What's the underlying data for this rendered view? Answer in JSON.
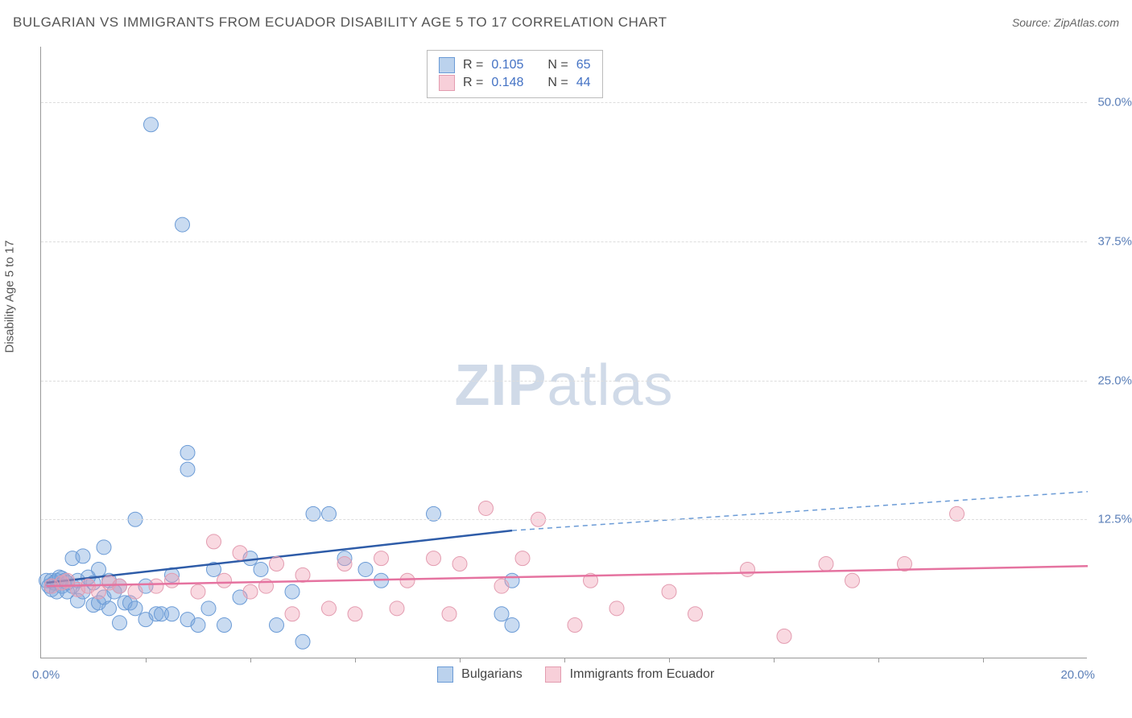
{
  "title": "BULGARIAN VS IMMIGRANTS FROM ECUADOR DISABILITY AGE 5 TO 17 CORRELATION CHART",
  "source": "Source: ZipAtlas.com",
  "watermark_bold": "ZIP",
  "watermark_light": "atlas",
  "y_axis_title": "Disability Age 5 to 17",
  "chart": {
    "type": "scatter",
    "xlim": [
      0,
      20
    ],
    "ylim": [
      0,
      55
    ],
    "xticks_pct": [
      2,
      4,
      6,
      8,
      10,
      12,
      14,
      16,
      18
    ],
    "yticks": [
      {
        "v": 12.5,
        "label": "12.5%"
      },
      {
        "v": 25.0,
        "label": "25.0%"
      },
      {
        "v": 37.5,
        "label": "37.5%"
      },
      {
        "v": 50.0,
        "label": "50.0%"
      }
    ],
    "xlabel_min": "0.0%",
    "xlabel_max": "20.0%",
    "background_color": "#ffffff",
    "grid_color": "#dddddd",
    "marker_radius": 9,
    "series": [
      {
        "name": "Bulgarians",
        "color_fill": "rgba(120,165,220,0.4)",
        "color_stroke": "#6b9bd6",
        "R": "0.105",
        "N": "65",
        "points": [
          [
            0.1,
            7.0
          ],
          [
            0.15,
            6.5
          ],
          [
            0.2,
            7.0
          ],
          [
            0.2,
            6.2
          ],
          [
            0.25,
            6.8
          ],
          [
            0.3,
            7.0
          ],
          [
            0.3,
            6.0
          ],
          [
            0.35,
            7.3
          ],
          [
            0.4,
            6.5
          ],
          [
            0.4,
            7.2
          ],
          [
            0.45,
            7.0
          ],
          [
            0.5,
            6.8
          ],
          [
            0.5,
            6.0
          ],
          [
            0.6,
            9.0
          ],
          [
            0.6,
            6.5
          ],
          [
            0.7,
            7.0
          ],
          [
            0.7,
            5.2
          ],
          [
            0.8,
            9.2
          ],
          [
            0.8,
            6.0
          ],
          [
            0.9,
            7.3
          ],
          [
            1.0,
            6.8
          ],
          [
            1.0,
            4.8
          ],
          [
            1.1,
            8.0
          ],
          [
            1.1,
            5.0
          ],
          [
            1.2,
            10.0
          ],
          [
            1.2,
            5.5
          ],
          [
            1.3,
            7.0
          ],
          [
            1.3,
            4.5
          ],
          [
            1.4,
            6.0
          ],
          [
            1.5,
            6.5
          ],
          [
            1.5,
            3.2
          ],
          [
            1.6,
            5.0
          ],
          [
            1.7,
            5.0
          ],
          [
            1.8,
            12.5
          ],
          [
            1.8,
            4.5
          ],
          [
            2.0,
            6.5
          ],
          [
            2.0,
            3.5
          ],
          [
            2.1,
            48.0
          ],
          [
            2.2,
            4.0
          ],
          [
            2.3,
            4.0
          ],
          [
            2.5,
            7.5
          ],
          [
            2.5,
            4.0
          ],
          [
            2.7,
            39.0
          ],
          [
            2.8,
            18.5
          ],
          [
            2.8,
            17.0
          ],
          [
            2.8,
            3.5
          ],
          [
            3.0,
            3.0
          ],
          [
            3.2,
            4.5
          ],
          [
            3.3,
            8.0
          ],
          [
            3.5,
            3.0
          ],
          [
            3.8,
            5.5
          ],
          [
            4.0,
            9.0
          ],
          [
            4.2,
            8.0
          ],
          [
            4.5,
            3.0
          ],
          [
            4.8,
            6.0
          ],
          [
            5.0,
            1.5
          ],
          [
            5.2,
            13.0
          ],
          [
            5.5,
            13.0
          ],
          [
            5.8,
            9.0
          ],
          [
            6.2,
            8.0
          ],
          [
            6.5,
            7.0
          ],
          [
            7.5,
            13.0
          ],
          [
            8.8,
            4.0
          ],
          [
            9.0,
            7.0
          ],
          [
            9.0,
            3.0
          ]
        ],
        "trend_solid": {
          "x1": 0.1,
          "y1": 6.8,
          "x2": 9.0,
          "y2": 11.5
        },
        "trend_dash": {
          "x1": 9.0,
          "y1": 11.5,
          "x2": 20.0,
          "y2": 15.0
        }
      },
      {
        "name": "Immigrants from Ecuador",
        "color_fill": "rgba(240,160,180,0.4)",
        "color_stroke": "#e39cb0",
        "R": "0.148",
        "N": "44",
        "points": [
          [
            0.2,
            6.5
          ],
          [
            0.4,
            6.8
          ],
          [
            0.5,
            7.0
          ],
          [
            0.7,
            6.2
          ],
          [
            0.9,
            6.5
          ],
          [
            1.1,
            6.0
          ],
          [
            1.3,
            6.8
          ],
          [
            1.5,
            6.5
          ],
          [
            1.8,
            6.0
          ],
          [
            2.2,
            6.5
          ],
          [
            2.5,
            7.0
          ],
          [
            3.0,
            6.0
          ],
          [
            3.3,
            10.5
          ],
          [
            3.5,
            7.0
          ],
          [
            3.8,
            9.5
          ],
          [
            4.0,
            6.0
          ],
          [
            4.3,
            6.5
          ],
          [
            4.5,
            8.5
          ],
          [
            4.8,
            4.0
          ],
          [
            5.0,
            7.5
          ],
          [
            5.5,
            4.5
          ],
          [
            5.8,
            8.5
          ],
          [
            6.0,
            4.0
          ],
          [
            6.5,
            9.0
          ],
          [
            6.8,
            4.5
          ],
          [
            7.0,
            7.0
          ],
          [
            7.5,
            9.0
          ],
          [
            7.8,
            4.0
          ],
          [
            8.0,
            8.5
          ],
          [
            8.5,
            13.5
          ],
          [
            8.8,
            6.5
          ],
          [
            9.2,
            9.0
          ],
          [
            9.5,
            12.5
          ],
          [
            10.2,
            3.0
          ],
          [
            10.5,
            7.0
          ],
          [
            11.0,
            4.5
          ],
          [
            12.0,
            6.0
          ],
          [
            12.5,
            4.0
          ],
          [
            13.5,
            8.0
          ],
          [
            14.2,
            2.0
          ],
          [
            15.0,
            8.5
          ],
          [
            15.5,
            7.0
          ],
          [
            16.5,
            8.5
          ],
          [
            17.5,
            13.0
          ]
        ],
        "trend_solid": {
          "x1": 0.1,
          "y1": 6.5,
          "x2": 20.0,
          "y2": 8.3
        }
      }
    ]
  },
  "stats_box": {
    "rows": [
      {
        "class": "blue",
        "R_label": "R =",
        "R": "0.105",
        "N_label": "N =",
        "N": "65"
      },
      {
        "class": "pink",
        "R_label": "R =",
        "R": "0.148",
        "N_label": "N =",
        "N": "44"
      }
    ]
  },
  "legend": {
    "items": [
      {
        "class": "blue",
        "label": "Bulgarians"
      },
      {
        "class": "pink",
        "label": "Immigrants from Ecuador"
      }
    ]
  }
}
